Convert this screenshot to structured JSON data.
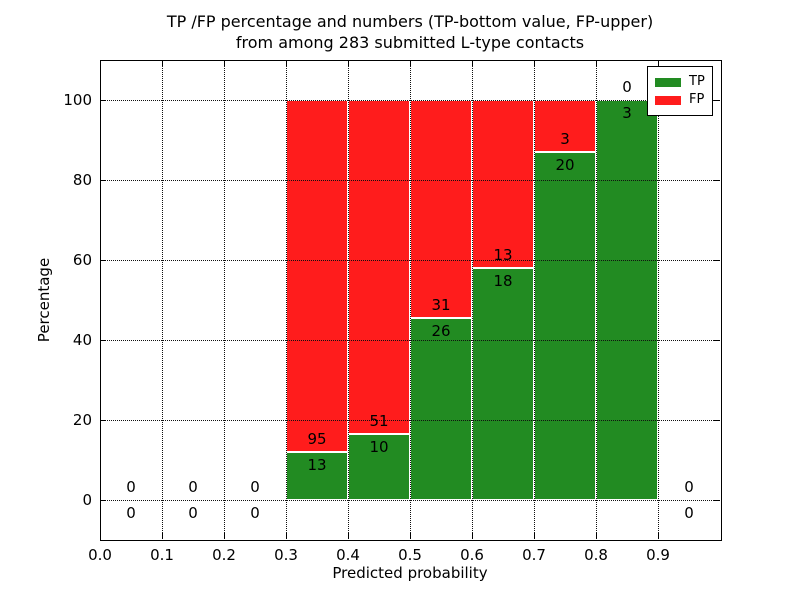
{
  "chart_data": {
    "type": "bar",
    "stacked": true,
    "title_line1": "TP /FP percentage and numbers (TP-bottom value, FP-upper)",
    "title_line2": "from among 283 submitted L-type contacts",
    "xlabel": "Predicted probability",
    "ylabel": "Percentage",
    "total_contacts": 283,
    "xlim": [
      0.0,
      1.0
    ],
    "ylim": [
      -10,
      110
    ],
    "grid": "dotted",
    "xtick_labels": [
      "0.0",
      "0.1",
      "0.2",
      "0.3",
      "0.4",
      "0.5",
      "0.6",
      "0.7",
      "0.8",
      "0.9"
    ],
    "xtick_values": [
      0.0,
      0.1,
      0.2,
      0.3,
      0.4,
      0.5,
      0.6,
      0.7,
      0.8,
      0.9
    ],
    "ytick_labels": [
      "0",
      "20",
      "40",
      "60",
      "80",
      "100"
    ],
    "ytick_values": [
      0,
      20,
      40,
      60,
      80,
      100
    ],
    "colors": {
      "tp": "#228b22",
      "fp": "#ff1c1c",
      "bar_edge": "#ffffff",
      "grid": "#111111"
    },
    "legend": {
      "position": "upper-right",
      "items": [
        {
          "label": "TP",
          "color": "#228b22"
        },
        {
          "label": "FP",
          "color": "#ff1c1c"
        }
      ]
    },
    "bins": [
      {
        "x0": 0.0,
        "x1": 0.1,
        "tp": 0,
        "fp": 0
      },
      {
        "x0": 0.1,
        "x1": 0.2,
        "tp": 0,
        "fp": 0
      },
      {
        "x0": 0.2,
        "x1": 0.3,
        "tp": 0,
        "fp": 0
      },
      {
        "x0": 0.3,
        "x1": 0.4,
        "tp": 13,
        "fp": 95
      },
      {
        "x0": 0.4,
        "x1": 0.5,
        "tp": 10,
        "fp": 51
      },
      {
        "x0": 0.5,
        "x1": 0.6,
        "tp": 26,
        "fp": 31
      },
      {
        "x0": 0.6,
        "x1": 0.7,
        "tp": 18,
        "fp": 13
      },
      {
        "x0": 0.7,
        "x1": 0.8,
        "tp": 20,
        "fp": 3
      },
      {
        "x0": 0.8,
        "x1": 0.9,
        "tp": 3,
        "fp": 0
      },
      {
        "x0": 0.9,
        "x1": 1.0,
        "tp": 0,
        "fp": 0
      }
    ]
  }
}
